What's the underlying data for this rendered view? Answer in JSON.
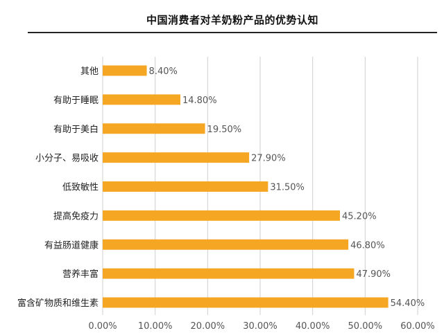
{
  "chart_data": {
    "type": "bar",
    "orientation": "horizontal",
    "title": "中国消费者对羊奶粉产品的优势认知",
    "categories": [
      "其他",
      "有助于睡眠",
      "有助于美白",
      "小分子、易吸收",
      "低致敏性",
      "提高免疫力",
      "有益肠道健康",
      "营养丰富",
      "富含矿物质和维生素"
    ],
    "values": [
      8.4,
      14.8,
      19.5,
      27.9,
      31.5,
      45.2,
      46.8,
      47.9,
      54.4
    ],
    "data_labels": [
      "8.40%",
      "14.80%",
      "19.50%",
      "27.90%",
      "31.50%",
      "45.20%",
      "46.80%",
      "47.90%",
      "54.40%"
    ],
    "x_ticks": [
      "0.00%",
      "10.00%",
      "20.00%",
      "30.00%",
      "40.00%",
      "50.00%",
      "60.00%"
    ],
    "xlim": [
      0,
      60
    ],
    "grid": "vertical",
    "bar_color": "#F5A623",
    "grid_color": "#cfcfcf",
    "label_color": "#555555"
  }
}
